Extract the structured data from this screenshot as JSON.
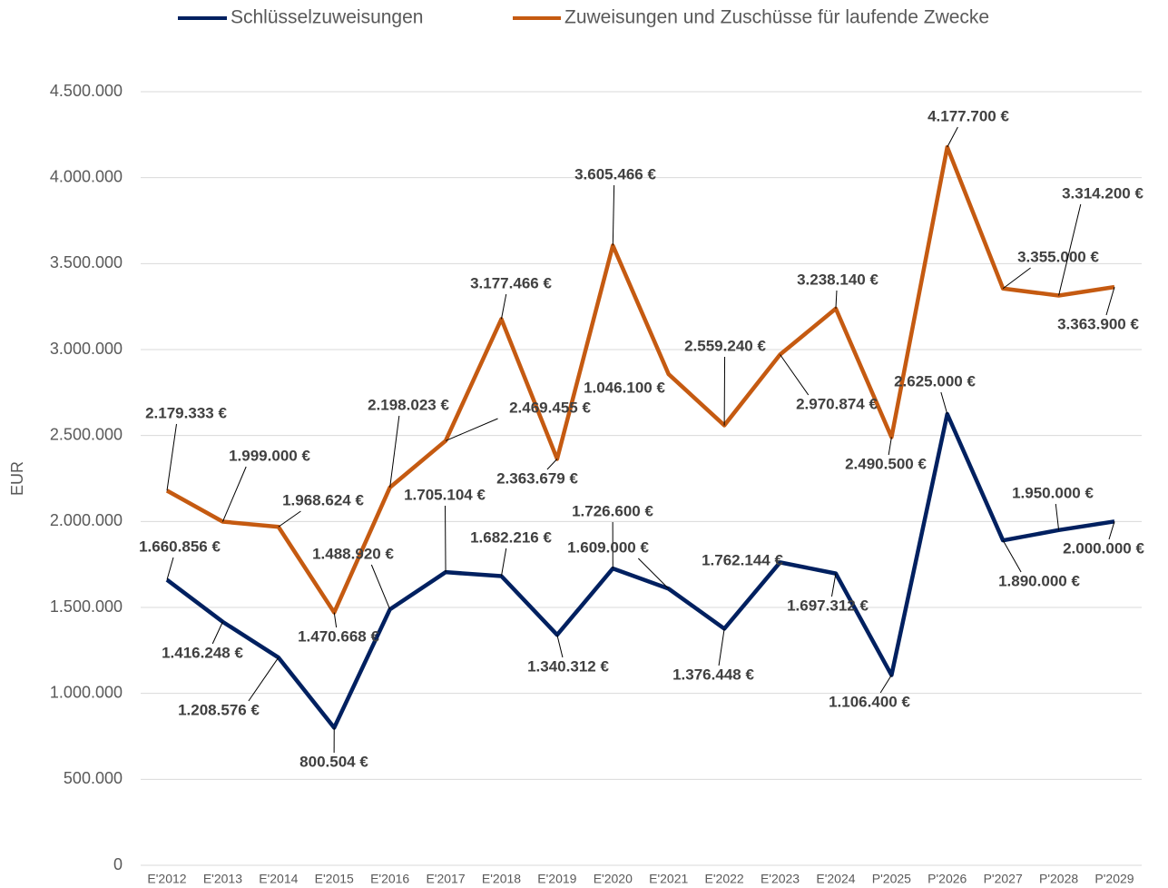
{
  "chart_data": {
    "type": "line",
    "y_label": "EUR",
    "categories": [
      "E'2012",
      "E'2013",
      "E'2014",
      "E'2015",
      "E'2016",
      "E'2017",
      "E'2018",
      "E'2019",
      "E'2020",
      "E'2021",
      "E'2022",
      "E'2023",
      "E'2024",
      "P'2025",
      "P'2026",
      "P'2027",
      "P'2028",
      "P'2029"
    ],
    "series": [
      {
        "name": "Schlüsselzuweisungen",
        "color": "#002060",
        "values": [
          1660856,
          1416248,
          1208576,
          800504,
          1488920,
          1705104,
          1682216,
          1340312,
          1726600,
          1609000,
          1376448,
          1762144,
          1697312,
          1106400,
          2625000,
          1890000,
          1950000,
          2000000
        ],
        "value_labels": [
          "1.660.856 €",
          "1.416.248 €",
          "1.208.576 €",
          "800.504 €",
          "1.488.920 €",
          "1.705.104 €",
          "1.682.216 €",
          "1.340.312 €",
          "1.726.600 €",
          "1.609.000 €",
          "1.376.448 €",
          "1.762.144 €",
          "1.697.312 €",
          "1.106.400 €",
          "2.625.000 €",
          "1.890.000 €",
          "1.950.000 €",
          "2.000.000 €"
        ]
      },
      {
        "name": "Zuweisungen und Zuschüsse für laufende Zwecke",
        "color": "#c55a11",
        "values": [
          2179333,
          1999000,
          1968624,
          1470668,
          2198023,
          2469455,
          3177466,
          2363679,
          3605466,
          2857000,
          2559240,
          2970874,
          3238140,
          2490500,
          4177700,
          3355000,
          3314200,
          3363900
        ],
        "value_labels": [
          "2.179.333 €",
          "1.999.000 €",
          "1.968.624 €",
          "1.470.668 €",
          "2.198.023 €",
          "2.469.455 €",
          "3.177.466 €",
          "2.363.679 €",
          "3.605.466 €",
          null,
          "2.559.240 €",
          "2.970.874 €",
          "3.238.140 €",
          "2.490.500 €",
          "4.177.700 €",
          "3.355.000 €",
          "3.314.200 €",
          "3.363.900 €"
        ]
      }
    ],
    "annotations": [
      "1.046.100 €"
    ],
    "ylim": [
      0,
      4500000
    ],
    "yticks": [
      0,
      {
        "value": 500000,
        "label": "500.000"
      },
      {
        "value": 1000000,
        "label": "1.000.000"
      },
      {
        "value": 1500000,
        "label": "1.500.000"
      },
      {
        "value": 2000000,
        "label": "2.000.000"
      },
      {
        "value": 2500000,
        "label": "2.500.000"
      },
      {
        "value": 3000000,
        "label": "3.000.000"
      },
      {
        "value": 3500000,
        "label": "3.500.000"
      },
      {
        "value": 4000000,
        "label": "4.000.000"
      },
      {
        "value": 4500000,
        "label": "4.500.000"
      }
    ],
    "grid": true,
    "legend": "top"
  }
}
